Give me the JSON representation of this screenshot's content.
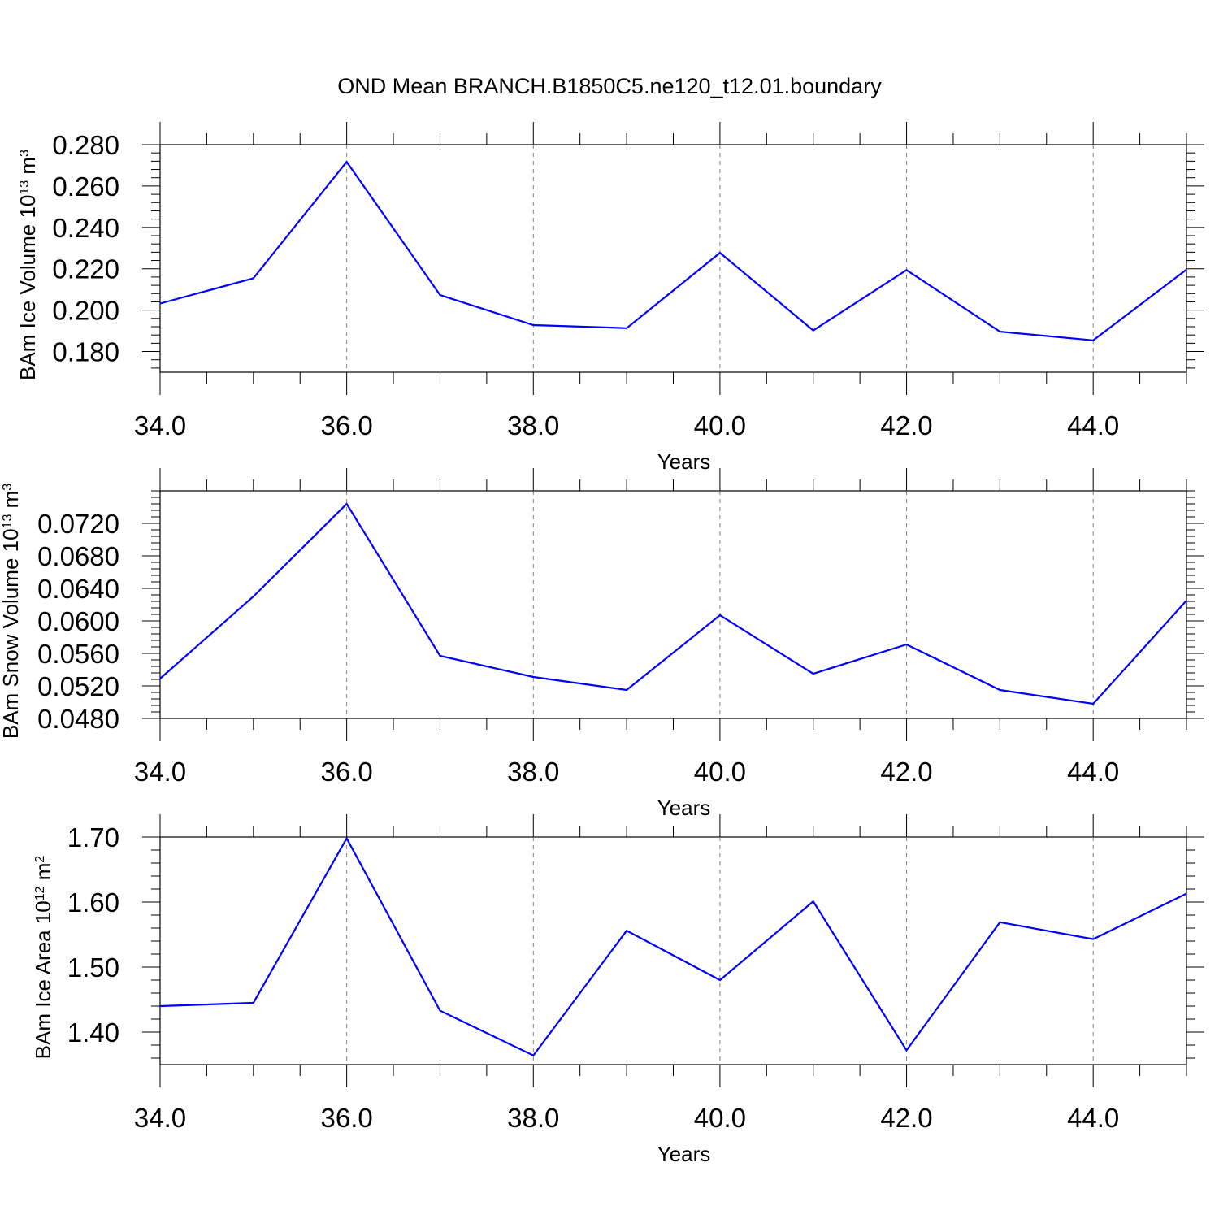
{
  "title": "OND Mean BRANCH.B1850C5.ne120_t12.01.boundary",
  "line_color": "#0000ff",
  "grid_color": "#808080",
  "chart_data": [
    {
      "type": "line",
      "ylabel": {
        "base": "BAm Ice Volume 10",
        "sup1": "13",
        "mid": " m",
        "sup2": "3"
      },
      "xlabel": "Years",
      "xlim": [
        34,
        45
      ],
      "ylim": [
        0.17,
        0.28
      ],
      "xticks": [
        34,
        36,
        38,
        40,
        42,
        44
      ],
      "xtick_labels": [
        "34.0",
        "36.0",
        "38.0",
        "40.0",
        "42.0",
        "44.0"
      ],
      "yticks": [
        0.18,
        0.2,
        0.22,
        0.24,
        0.26,
        0.28
      ],
      "ytick_labels": [
        "0.180",
        "0.200",
        "0.220",
        "0.240",
        "0.260",
        "0.280"
      ],
      "grid": "vertical dashed at major x ticks",
      "x": [
        34,
        35,
        36,
        37,
        38,
        39,
        40,
        41,
        42,
        43,
        44,
        45
      ],
      "y": [
        0.2032,
        0.2154,
        0.2717,
        0.2073,
        0.1928,
        0.1913,
        0.2277,
        0.1902,
        0.2194,
        0.1896,
        0.1854,
        0.2196
      ]
    },
    {
      "type": "line",
      "ylabel": {
        "base": "BAm Snow Volume 10",
        "sup1": "13",
        "mid": " m",
        "sup2": "3"
      },
      "xlabel": "Years",
      "xlim": [
        34,
        45
      ],
      "ylim": [
        0.048,
        0.076
      ],
      "xticks": [
        34,
        36,
        38,
        40,
        42,
        44
      ],
      "xtick_labels": [
        "34.0",
        "36.0",
        "38.0",
        "40.0",
        "42.0",
        "44.0"
      ],
      "yticks": [
        0.048,
        0.052,
        0.056,
        0.06,
        0.064,
        0.068,
        0.072
      ],
      "ytick_labels": [
        "0.0480",
        "0.0520",
        "0.0560",
        "0.0600",
        "0.0640",
        "0.0680",
        "0.0720"
      ],
      "grid": "vertical dashed at major x ticks",
      "x": [
        34,
        35,
        36,
        37,
        38,
        39,
        40,
        41,
        42,
        43,
        44,
        45
      ],
      "y": [
        0.0529,
        0.063,
        0.0744,
        0.0557,
        0.0531,
        0.0515,
        0.0607,
        0.0535,
        0.0571,
        0.0515,
        0.0498,
        0.0625
      ]
    },
    {
      "type": "line",
      "ylabel": {
        "base": "BAm Ice Area 10",
        "sup1": "12",
        "mid": " m",
        "sup2": "2"
      },
      "xlabel": "Years",
      "xlim": [
        34,
        45
      ],
      "ylim": [
        1.35,
        1.7
      ],
      "xticks": [
        34,
        36,
        38,
        40,
        42,
        44
      ],
      "xtick_labels": [
        "34.0",
        "36.0",
        "38.0",
        "40.0",
        "42.0",
        "44.0"
      ],
      "yticks": [
        1.4,
        1.5,
        1.6,
        1.7
      ],
      "ytick_labels": [
        "1.40",
        "1.50",
        "1.60",
        "1.70"
      ],
      "grid": "vertical dashed at major x ticks",
      "x": [
        34,
        35,
        36,
        37,
        38,
        39,
        40,
        41,
        42,
        43,
        44,
        45
      ],
      "y": [
        1.44,
        1.445,
        1.698,
        1.433,
        1.364,
        1.556,
        1.48,
        1.601,
        1.372,
        1.569,
        1.543,
        1.613
      ]
    }
  ]
}
